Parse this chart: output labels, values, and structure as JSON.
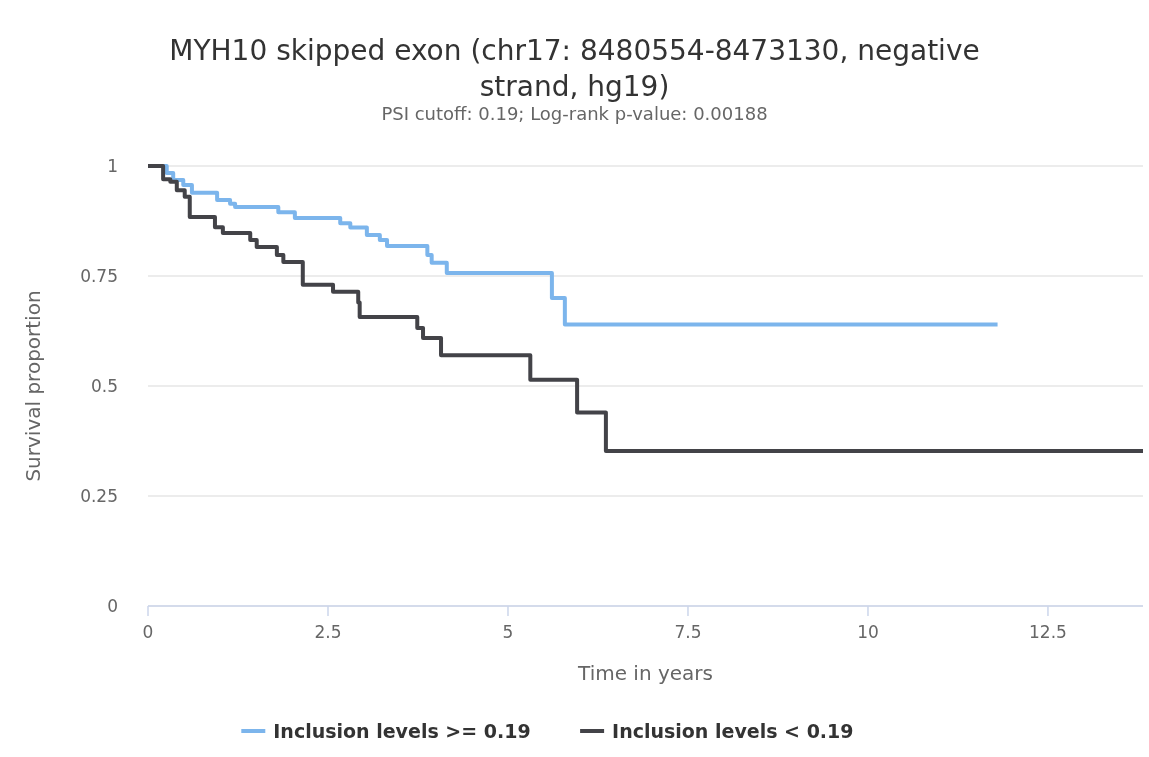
{
  "chart_data": {
    "type": "step",
    "title": "MYH10 skipped exon (chr17: 8480554-8473130, negative strand, hg19)",
    "subtitle": "PSI cutoff: 0.19; Log-rank p-value: 0.00188",
    "xlabel": "Time in years",
    "ylabel": "Survival proportion",
    "xlim": [
      0,
      13.82
    ],
    "xticks": [
      0,
      2.5,
      5,
      7.5,
      10,
      12.5
    ],
    "ylim": [
      0,
      1
    ],
    "yticks": [
      0,
      0.25,
      0.5,
      0.75,
      1
    ],
    "grid": "y",
    "legend": "bottom",
    "series": [
      {
        "name": "Inclusion levels >= 0.19",
        "color": "#7cb5ec",
        "x": [
          0,
          0.26,
          0.35,
          0.49,
          0.61,
          0.96,
          1.14,
          1.21,
          1.81,
          2.04,
          2.67,
          2.81,
          3.04,
          3.22,
          3.32,
          3.88,
          3.94,
          4.15,
          5.61,
          5.79,
          11.8
        ],
        "values": [
          1,
          0.984,
          0.968,
          0.957,
          0.939,
          0.923,
          0.914,
          0.907,
          0.895,
          0.882,
          0.87,
          0.86,
          0.843,
          0.832,
          0.818,
          0.798,
          0.78,
          0.757,
          0.7,
          0.64,
          0.64
        ]
      },
      {
        "name": "Inclusion levels < 0.19",
        "color": "#434348",
        "x": [
          0,
          0.21,
          0.31,
          0.4,
          0.51,
          0.58,
          0.93,
          1.04,
          1.42,
          1.51,
          1.79,
          1.88,
          2.15,
          2.57,
          2.92,
          2.94,
          3.74,
          3.82,
          4.07,
          5.31,
          5.96,
          6.36,
          13.82
        ],
        "values": [
          1,
          0.97,
          0.964,
          0.945,
          0.93,
          0.884,
          0.861,
          0.848,
          0.832,
          0.816,
          0.798,
          0.782,
          0.73,
          0.714,
          0.69,
          0.657,
          0.632,
          0.609,
          0.57,
          0.514,
          0.44,
          0.352,
          0.352
        ]
      }
    ]
  }
}
